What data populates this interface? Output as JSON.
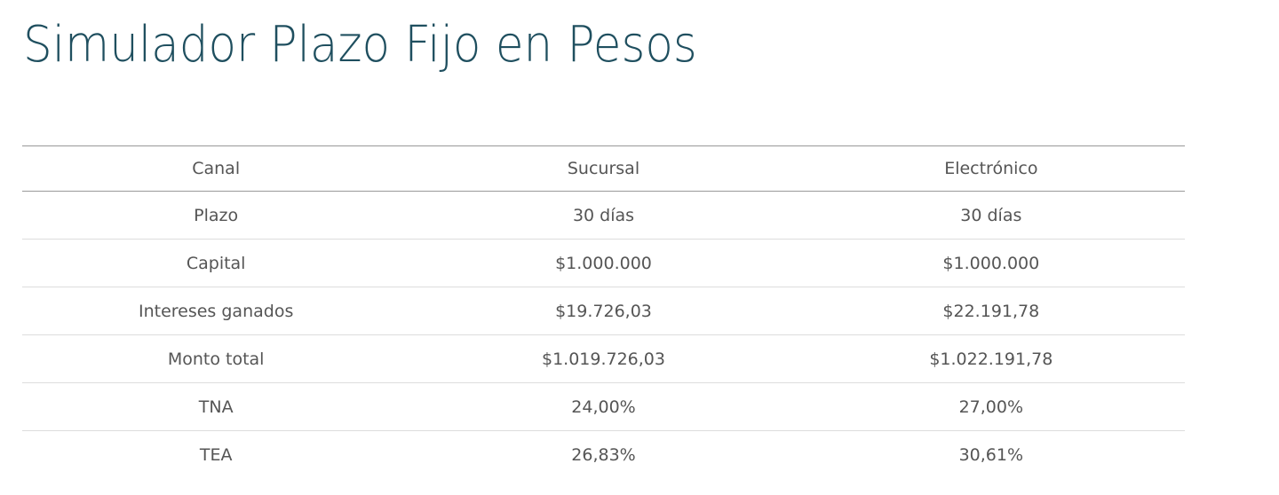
{
  "header": {
    "title": "Simulador Plazo Fijo en Pesos"
  },
  "table": {
    "columns": [
      "Canal",
      "Sucursal",
      "Electrónico"
    ],
    "rows": [
      [
        "Plazo",
        "30 días",
        "30 días"
      ],
      [
        "Capital",
        "$1.000.000",
        "$1.000.000"
      ],
      [
        "Intereses ganados",
        "$19.726,03",
        "$22.191,78"
      ],
      [
        "Monto total",
        "$1.019.726,03",
        "$1.022.191,78"
      ],
      [
        "TNA",
        "24,00%",
        "27,00%"
      ],
      [
        "TEA",
        "26,83%",
        "30,61%"
      ]
    ]
  }
}
